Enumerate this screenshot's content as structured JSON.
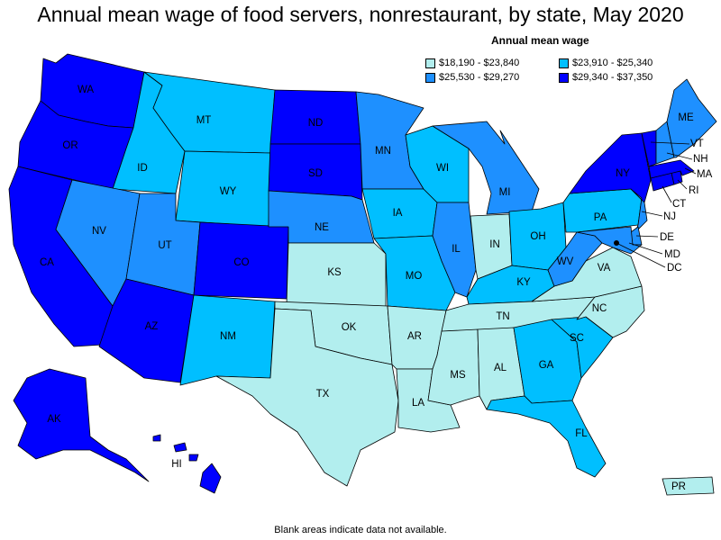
{
  "title": "Annual mean wage of food servers, nonrestaurant, by state, May 2020",
  "legend": {
    "title": "Annual mean wage",
    "items": [
      {
        "label": "$18,190 - $23,840",
        "color": "#b2eeee"
      },
      {
        "label": "$23,910 - $25,340",
        "color": "#00bfff"
      },
      {
        "label": "$25,530 - $29,270",
        "color": "#1e90ff"
      },
      {
        "label": "$29,340 - $37,350",
        "color": "#0000ff"
      }
    ]
  },
  "footnote": "Blank areas indicate data not available.",
  "states": {
    "WA": {
      "label": "WA",
      "tier": 3
    },
    "OR": {
      "label": "OR",
      "tier": 3
    },
    "CA": {
      "label": "CA",
      "tier": 3
    },
    "ID": {
      "label": "ID",
      "tier": 1
    },
    "NV": {
      "label": "NV",
      "tier": 2
    },
    "MT": {
      "label": "MT",
      "tier": 1
    },
    "WY": {
      "label": "WY",
      "tier": 1
    },
    "UT": {
      "label": "UT",
      "tier": 2
    },
    "AZ": {
      "label": "AZ",
      "tier": 3
    },
    "CO": {
      "label": "CO",
      "tier": 3
    },
    "NM": {
      "label": "NM",
      "tier": 1
    },
    "ND": {
      "label": "ND",
      "tier": 3
    },
    "SD": {
      "label": "SD",
      "tier": 3
    },
    "NE": {
      "label": "NE",
      "tier": 2
    },
    "KS": {
      "label": "KS",
      "tier": 0
    },
    "OK": {
      "label": "OK",
      "tier": 0
    },
    "TX": {
      "label": "TX",
      "tier": 0
    },
    "MN": {
      "label": "MN",
      "tier": 2
    },
    "IA": {
      "label": "IA",
      "tier": 1
    },
    "MO": {
      "label": "MO",
      "tier": 1
    },
    "AR": {
      "label": "AR",
      "tier": 0
    },
    "LA": {
      "label": "LA",
      "tier": 0
    },
    "WI": {
      "label": "WI",
      "tier": 1
    },
    "IL": {
      "label": "IL",
      "tier": 2
    },
    "MI": {
      "label": "MI",
      "tier": 2
    },
    "IN": {
      "label": "IN",
      "tier": 0
    },
    "OH": {
      "label": "OH",
      "tier": 1
    },
    "KY": {
      "label": "KY",
      "tier": 1
    },
    "TN": {
      "label": "TN",
      "tier": 0
    },
    "MS": {
      "label": "MS",
      "tier": 0
    },
    "AL": {
      "label": "AL",
      "tier": 0
    },
    "GA": {
      "label": "GA",
      "tier": 1
    },
    "FL": {
      "label": "FL",
      "tier": 1
    },
    "SC": {
      "label": "SC",
      "tier": 1
    },
    "NC": {
      "label": "NC",
      "tier": 0
    },
    "VA": {
      "label": "VA",
      "tier": 0
    },
    "WV": {
      "label": "WV",
      "tier": 2
    },
    "PA": {
      "label": "PA",
      "tier": 1
    },
    "NY": {
      "label": "NY",
      "tier": 3
    },
    "NJ": {
      "label": "NJ",
      "tier": 2
    },
    "DE": {
      "label": "DE",
      "tier": 2
    },
    "MD": {
      "label": "MD",
      "tier": 2
    },
    "DC": {
      "label": "DC",
      "tier": 3
    },
    "CT": {
      "label": "CT",
      "tier": 3
    },
    "RI": {
      "label": "RI",
      "tier": 3
    },
    "MA": {
      "label": "MA",
      "tier": 3
    },
    "VT": {
      "label": "VT",
      "tier": 3
    },
    "NH": {
      "label": "NH",
      "tier": 2
    },
    "ME": {
      "label": "ME",
      "tier": 2
    },
    "AK": {
      "label": "AK",
      "tier": 3
    },
    "HI": {
      "label": "HI",
      "tier": 3
    },
    "PR": {
      "label": "PR",
      "tier": 0
    }
  }
}
